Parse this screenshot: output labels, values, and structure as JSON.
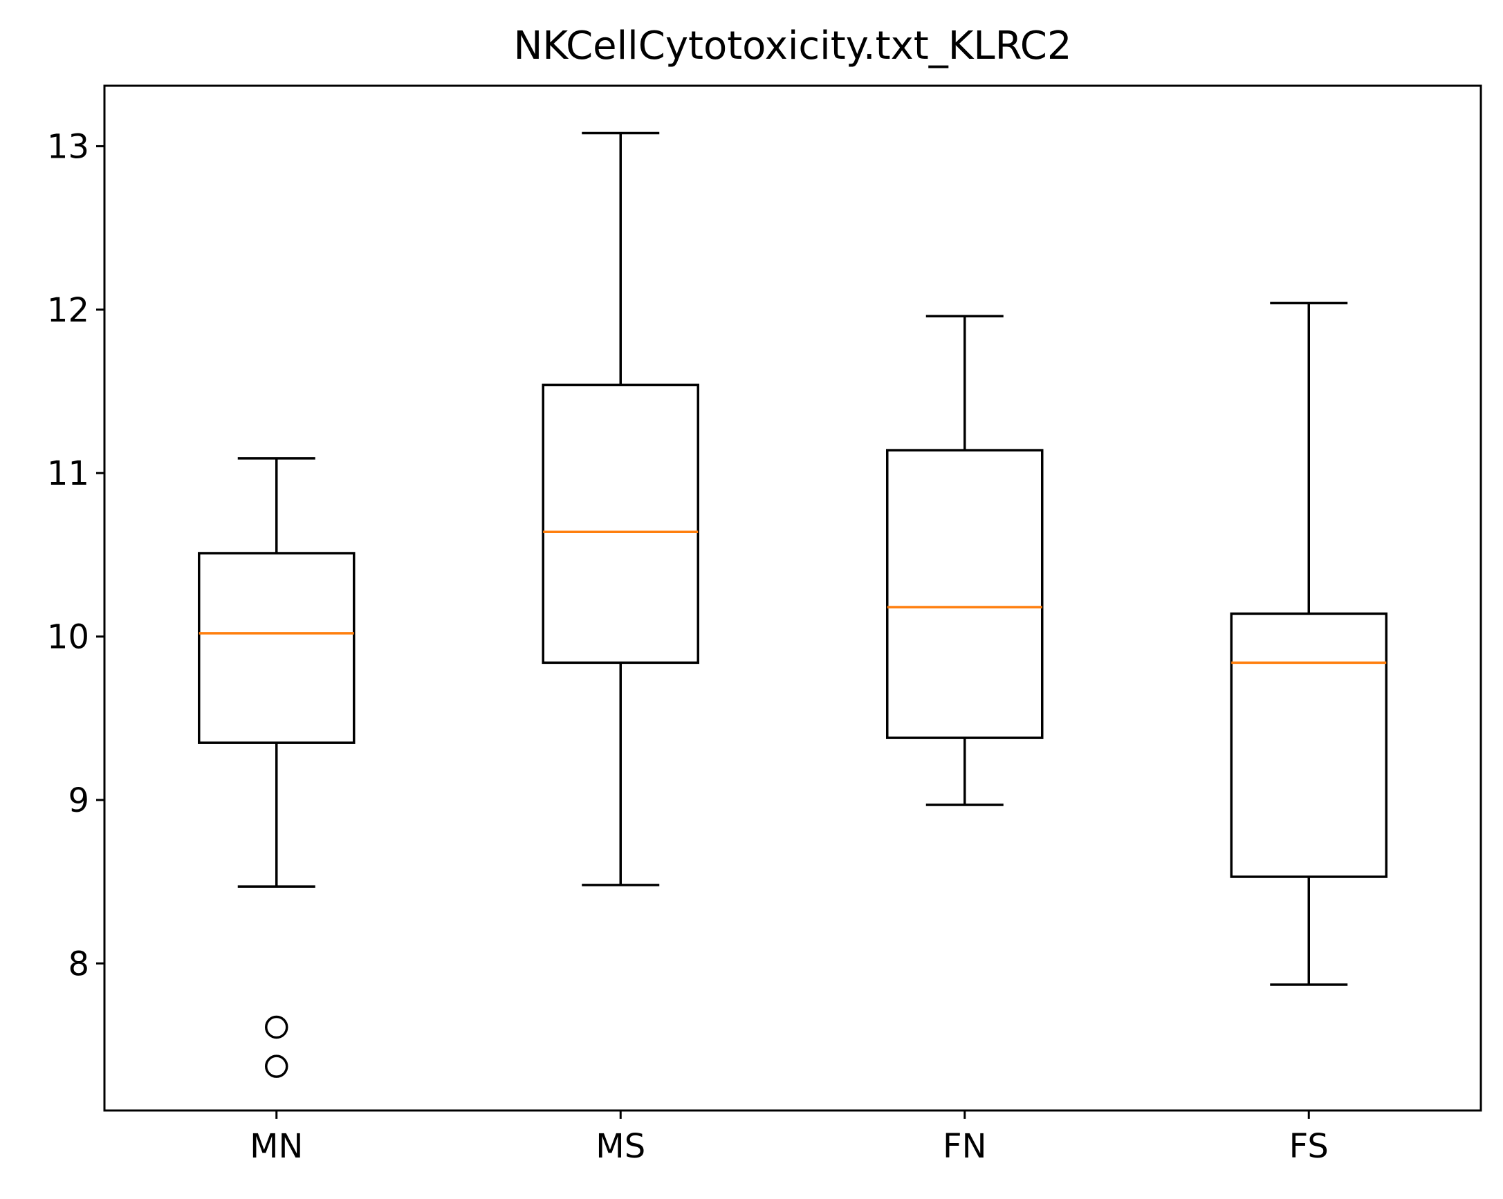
{
  "chart_data": {
    "type": "box",
    "title": "NKCellCytotoxicity.txt_KLRC2",
    "xlabel": "",
    "ylabel": "",
    "categories": [
      "MN",
      "MS",
      "FN",
      "FS"
    ],
    "ylim": [
      7.1,
      13.37
    ],
    "yticks": [
      8,
      9,
      10,
      11,
      12,
      13
    ],
    "grid": false,
    "legend": "none",
    "colors": {
      "box": "#000000",
      "median": "#ff7f0e",
      "background": "#ffffff"
    },
    "boxes": [
      {
        "category": "MN",
        "whisker_low": 8.47,
        "q1": 9.35,
        "median": 10.02,
        "q3": 10.51,
        "whisker_high": 11.09,
        "outliers": [
          7.61,
          7.37
        ]
      },
      {
        "category": "MS",
        "whisker_low": 8.48,
        "q1": 9.84,
        "median": 10.64,
        "q3": 11.54,
        "whisker_high": 13.08,
        "outliers": []
      },
      {
        "category": "FN",
        "whisker_low": 8.97,
        "q1": 9.38,
        "median": 10.18,
        "q3": 11.14,
        "whisker_high": 11.96,
        "outliers": []
      },
      {
        "category": "FS",
        "whisker_low": 7.87,
        "q1": 8.53,
        "median": 9.84,
        "q3": 10.14,
        "whisker_high": 12.04,
        "outliers": []
      }
    ]
  }
}
